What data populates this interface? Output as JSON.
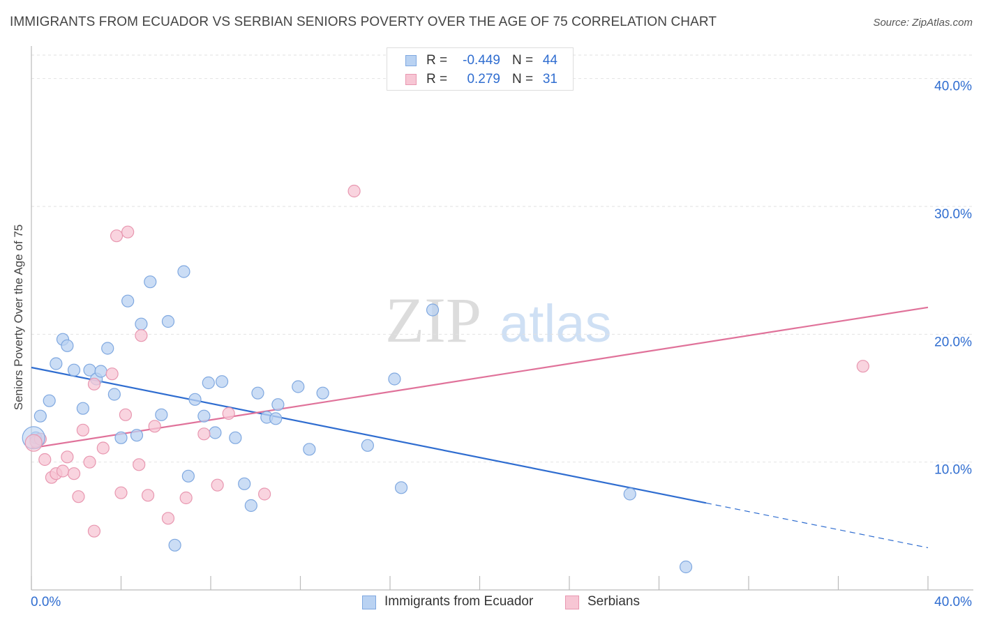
{
  "header": {
    "title": "IMMIGRANTS FROM ECUADOR VS SERBIAN SENIORS POVERTY OVER THE AGE OF 75 CORRELATION CHART",
    "source": "Source: ZipAtlas.com"
  },
  "watermark": {
    "zip": "ZIP",
    "atlas": "atlas"
  },
  "legend_stats": [
    {
      "r_label": "R =",
      "r_value": "-0.449",
      "n_label": "N =",
      "n_value": "44"
    },
    {
      "r_label": "R =",
      "r_value": "0.279",
      "n_label": "N =",
      "n_value": "31"
    }
  ],
  "chart_data": {
    "type": "scatter",
    "title": "IMMIGRANTS FROM ECUADOR VS SERBIAN SENIORS POVERTY OVER THE AGE OF 75 CORRELATION CHART",
    "xlabel": "",
    "ylabel": "Seniors Poverty Over the Age of 75",
    "xlim": [
      0,
      40
    ],
    "ylim": [
      0,
      42
    ],
    "x_tick_labels": [
      "0.0%",
      "40.0%"
    ],
    "y_ticks": [
      10,
      20,
      30,
      40
    ],
    "y_tick_labels": [
      "10.0%",
      "20.0%",
      "30.0%",
      "40.0%"
    ],
    "grid": true,
    "legend_position": "bottom-center",
    "colors": {
      "ecuador_fill": "#b9d2f2",
      "ecuador_stroke": "#7fa8e0",
      "ecuador_line": "#2f6dd0",
      "serbian_fill": "#f7c6d4",
      "serbian_stroke": "#e897b0",
      "serbian_line": "#e0729a",
      "axis_value": "#2f6dd0"
    },
    "series": [
      {
        "name": "Immigrants from Ecuador",
        "r": -0.449,
        "n": 44,
        "trend": {
          "x0": 0,
          "y0": 17.4,
          "x1": 30.1,
          "y1": 6.8,
          "dash_to_x": 40,
          "dash_to_y": 3.3
        },
        "points": [
          [
            0.2,
            11.9
          ],
          [
            0.4,
            13.6
          ],
          [
            0.8,
            14.8
          ],
          [
            1.1,
            17.7
          ],
          [
            1.4,
            19.6
          ],
          [
            1.6,
            19.1
          ],
          [
            1.9,
            17.2
          ],
          [
            2.3,
            14.2
          ],
          [
            2.6,
            17.2
          ],
          [
            2.9,
            16.5
          ],
          [
            3.1,
            17.1
          ],
          [
            3.4,
            18.9
          ],
          [
            3.7,
            15.3
          ],
          [
            4.0,
            11.9
          ],
          [
            4.3,
            22.6
          ],
          [
            4.7,
            12.1
          ],
          [
            4.9,
            20.8
          ],
          [
            5.3,
            24.1
          ],
          [
            5.8,
            13.7
          ],
          [
            6.1,
            21.0
          ],
          [
            6.4,
            3.5
          ],
          [
            6.8,
            24.9
          ],
          [
            7.0,
            8.9
          ],
          [
            7.3,
            14.9
          ],
          [
            7.7,
            13.6
          ],
          [
            7.9,
            16.2
          ],
          [
            8.2,
            12.3
          ],
          [
            8.5,
            16.3
          ],
          [
            9.1,
            11.9
          ],
          [
            9.5,
            8.3
          ],
          [
            9.8,
            6.6
          ],
          [
            10.1,
            15.4
          ],
          [
            10.5,
            13.5
          ],
          [
            10.9,
            13.4
          ],
          [
            11.0,
            14.5
          ],
          [
            11.9,
            15.9
          ],
          [
            12.4,
            11.0
          ],
          [
            13.0,
            15.4
          ],
          [
            15.0,
            11.3
          ],
          [
            16.2,
            16.5
          ],
          [
            16.5,
            8.0
          ],
          [
            17.9,
            21.9
          ],
          [
            26.7,
            7.5
          ],
          [
            29.2,
            1.8
          ]
        ]
      },
      {
        "name": "Serbians",
        "r": 0.279,
        "n": 31,
        "trend": {
          "x0": 0,
          "y0": 11.1,
          "x1": 40,
          "y1": 22.1
        },
        "points": [
          [
            0.2,
            11.6
          ],
          [
            0.4,
            11.8
          ],
          [
            0.6,
            10.2
          ],
          [
            0.9,
            8.8
          ],
          [
            1.1,
            9.1
          ],
          [
            1.4,
            9.3
          ],
          [
            1.6,
            10.4
          ],
          [
            1.9,
            9.1
          ],
          [
            2.1,
            7.3
          ],
          [
            2.3,
            12.5
          ],
          [
            2.6,
            10.0
          ],
          [
            2.8,
            4.6
          ],
          [
            3.2,
            11.1
          ],
          [
            3.6,
            16.9
          ],
          [
            3.8,
            27.7
          ],
          [
            4.0,
            7.6
          ],
          [
            4.2,
            13.7
          ],
          [
            4.3,
            28.0
          ],
          [
            4.8,
            9.8
          ],
          [
            4.9,
            19.9
          ],
          [
            5.2,
            7.4
          ],
          [
            5.5,
            12.8
          ],
          [
            6.1,
            5.6
          ],
          [
            6.9,
            7.2
          ],
          [
            7.7,
            12.2
          ],
          [
            8.3,
            8.2
          ],
          [
            8.8,
            13.8
          ],
          [
            10.4,
            7.5
          ],
          [
            14.4,
            31.2
          ],
          [
            37.1,
            17.5
          ],
          [
            2.8,
            16.1
          ]
        ]
      }
    ]
  },
  "bottom_legend": [
    {
      "label": "Immigrants from Ecuador"
    },
    {
      "label": "Serbians"
    }
  ]
}
